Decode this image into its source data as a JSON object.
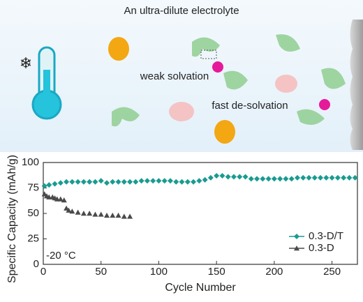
{
  "illustration": {
    "title": "An ultra-dilute electrolyte",
    "labels": [
      "weak solvation",
      "fast de-solvation"
    ]
  },
  "chart_data": {
    "type": "scatter",
    "xlabel": "Cycle Number",
    "ylabel": "Specific Capacity (mAh/g)",
    "annotation": "-20 °C",
    "xlim": [
      0,
      272
    ],
    "ylim": [
      0,
      100
    ],
    "xticks": [
      0,
      50,
      100,
      150,
      200,
      250
    ],
    "yticks": [
      0,
      25,
      50,
      75,
      100
    ],
    "legend": "lower right",
    "series": [
      {
        "name": "0.3-D/T",
        "color": "#1a9b90",
        "marker": "diamond",
        "x": [
          1,
          5,
          10,
          15,
          20,
          25,
          30,
          35,
          40,
          45,
          50,
          55,
          60,
          65,
          70,
          75,
          80,
          85,
          90,
          95,
          100,
          105,
          110,
          115,
          120,
          125,
          130,
          135,
          140,
          145,
          150,
          155,
          160,
          165,
          170,
          175,
          180,
          185,
          190,
          195,
          200,
          205,
          210,
          215,
          220,
          225,
          230,
          235,
          240,
          245,
          250,
          255,
          260,
          265,
          270
        ],
        "values": [
          77,
          78,
          79,
          80,
          81,
          81,
          81,
          81,
          81,
          81,
          82,
          80,
          81,
          81,
          81,
          81,
          81,
          82,
          82,
          82,
          82,
          82,
          82,
          81,
          81,
          81,
          81,
          82,
          83,
          85,
          87,
          87,
          86,
          86,
          86,
          86,
          84,
          84,
          84,
          84,
          84,
          84,
          84,
          84,
          85,
          85,
          85,
          85,
          85,
          85,
          85,
          85,
          85,
          85,
          85
        ]
      },
      {
        "name": "0.3-D",
        "color": "#4a4a4a",
        "marker": "triangle",
        "x": [
          1,
          3,
          5,
          8,
          10,
          12,
          15,
          18,
          20,
          22,
          25,
          30,
          35,
          40,
          45,
          50,
          55,
          60,
          65,
          70,
          75
        ],
        "values": [
          69,
          67,
          66,
          66,
          65,
          64,
          64,
          63,
          55,
          53,
          52,
          51,
          50,
          50,
          49,
          49,
          48,
          48,
          48,
          47,
          47
        ]
      }
    ]
  }
}
